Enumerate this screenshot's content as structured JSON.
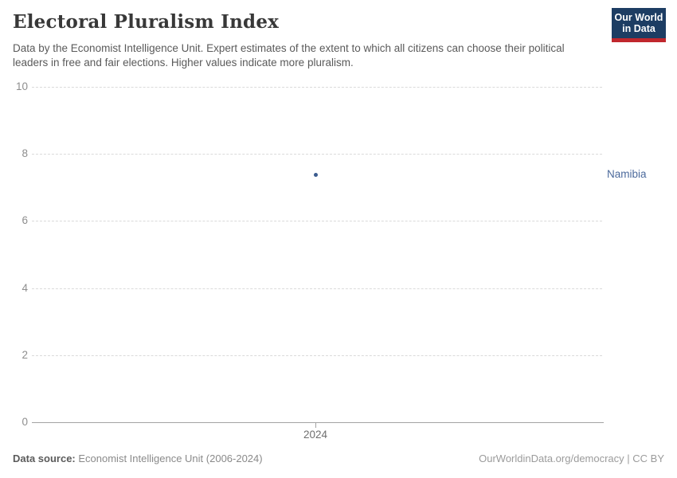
{
  "header": {
    "title": "Electoral Pluralism Index",
    "subtitle": "Data by the Economist Intelligence Unit. Expert estimates of the extent to which all citizens can choose their political leaders in free and fair elections. Higher values indicate more pluralism.",
    "logo": {
      "line1": "Our World",
      "line2": "in Data",
      "bg_color": "#1d3d63",
      "bar_color": "#c0272d"
    }
  },
  "chart_data": {
    "type": "scatter",
    "title": "Electoral Pluralism Index",
    "x": [
      2024
    ],
    "series": [
      {
        "name": "Namibia",
        "values": [
          7.4
        ],
        "color": "#3b5c8e"
      }
    ],
    "x_tick_labels": [
      "2024"
    ],
    "y_tick_labels": [
      "10",
      "8",
      "6",
      "4",
      "2",
      "0"
    ],
    "ylim": [
      0,
      10
    ],
    "xlabel": "",
    "ylabel": "",
    "grid": "horizontal-dashed",
    "legend_position": "entity-label-right",
    "entity_label": "Namibia",
    "entity_label_color": "#4c6a9c",
    "point_color": "#3b5c8e"
  },
  "footer": {
    "source_label": "Data source:",
    "source_text": " Economist Intelligence Unit (2006-2024)",
    "license_text": "OurWorldinData.org/democracy | CC BY"
  }
}
